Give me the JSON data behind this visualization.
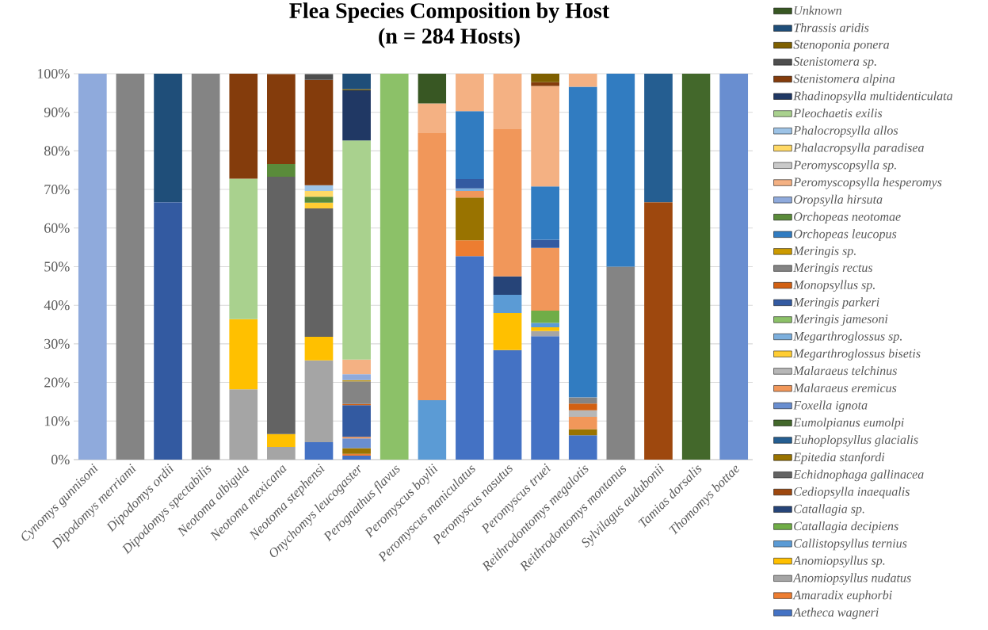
{
  "chart_data": {
    "type": "bar",
    "stacked": true,
    "title": "Flea Species Composition by Host",
    "subtitle": "(n = 284 Hosts)",
    "categories": [
      "Cynomys gunnisoni",
      "Dipodomys merriami",
      "Dipodomys ordii",
      "Dipodomys spectabilis",
      "Neotoma albigula",
      "Neotoma mexicana",
      "Neotoma stephensi",
      "Onychomys leucogaster",
      "Perognathus flavus",
      "Peromyscus boylii",
      "Peromyscus maniculatus",
      "Peromyscus nasutus",
      "Peromyscus truei",
      "Reithrodontomys megalotis",
      "Reithrodontomys montanus",
      "Sylvilagus audubonii",
      "Tamias dorsalis",
      "Thomomys bottae"
    ],
    "ylim": [
      0,
      100
    ],
    "yticks": [
      {
        "value": 0,
        "label": "0%"
      },
      {
        "value": 10,
        "label": "10%"
      },
      {
        "value": 20,
        "label": "20%"
      },
      {
        "value": 30,
        "label": "30%"
      },
      {
        "value": 40,
        "label": "40%"
      },
      {
        "value": 50,
        "label": "50%"
      },
      {
        "value": 60,
        "label": "60%"
      },
      {
        "value": 70,
        "label": "70%"
      },
      {
        "value": 80,
        "label": "80%"
      },
      {
        "value": 90,
        "label": "90%"
      },
      {
        "value": 100,
        "label": "100%"
      }
    ],
    "grid": "y",
    "legend": "right",
    "series": [
      {
        "name": "Aetheca wagneri",
        "color": "#4472c4",
        "values": [
          null,
          null,
          null,
          null,
          null,
          null,
          4.5,
          1.0,
          null,
          null,
          52.7,
          28.4,
          32.0,
          6.3,
          null,
          null,
          null,
          null
        ]
      },
      {
        "name": "Amaradix euphorbi",
        "color": "#ed7d31",
        "values": [
          null,
          null,
          null,
          null,
          null,
          null,
          null,
          0.5,
          null,
          null,
          4.1,
          null,
          null,
          null,
          null,
          null,
          null,
          null
        ]
      },
      {
        "name": "Anomiopsyllus nudatus",
        "color": "#a5a5a5",
        "values": [
          null,
          null,
          null,
          null,
          18.2,
          3.3,
          21.2,
          null,
          null,
          null,
          null,
          null,
          1.3,
          null,
          null,
          null,
          null,
          null
        ]
      },
      {
        "name": "Anomiopsyllus sp.",
        "color": "#ffc000",
        "values": [
          null,
          null,
          null,
          null,
          18.2,
          3.3,
          6.1,
          null,
          null,
          null,
          null,
          9.6,
          1.0,
          null,
          null,
          null,
          null,
          null
        ]
      },
      {
        "name": "Callistopsyllus ternius",
        "color": "#5b9bd5",
        "values": [
          null,
          null,
          null,
          null,
          null,
          null,
          null,
          null,
          null,
          15.4,
          null,
          4.7,
          1.1,
          null,
          null,
          null,
          null,
          null
        ]
      },
      {
        "name": "Catallagia decipiens",
        "color": "#70ad47",
        "values": [
          null,
          null,
          null,
          null,
          null,
          null,
          null,
          null,
          null,
          null,
          null,
          null,
          3.2,
          null,
          null,
          null,
          null,
          null
        ]
      },
      {
        "name": "Catallagia sp.",
        "color": "#264478",
        "values": [
          null,
          null,
          null,
          null,
          null,
          null,
          null,
          null,
          null,
          null,
          null,
          4.8,
          null,
          null,
          null,
          null,
          null,
          null
        ]
      },
      {
        "name": "Cediopsylla inaequalis",
        "color": "#9e480e",
        "values": [
          null,
          null,
          null,
          null,
          null,
          null,
          null,
          null,
          null,
          null,
          null,
          null,
          null,
          null,
          null,
          66.7,
          null,
          null
        ]
      },
      {
        "name": "Echidnophaga gallinacea",
        "color": "#636363",
        "values": [
          null,
          null,
          null,
          null,
          null,
          66.7,
          33.3,
          null,
          null,
          null,
          null,
          null,
          null,
          null,
          null,
          null,
          null,
          null
        ]
      },
      {
        "name": "Epitedia stanfordi",
        "color": "#997300",
        "values": [
          null,
          null,
          null,
          null,
          null,
          null,
          null,
          1.5,
          null,
          null,
          11.1,
          null,
          null,
          1.6,
          null,
          null,
          null,
          null
        ]
      },
      {
        "name": "Euhoplopsyllus glacialis",
        "color": "#255e91",
        "values": [
          null,
          null,
          null,
          null,
          null,
          null,
          null,
          null,
          null,
          null,
          null,
          null,
          null,
          null,
          null,
          33.3,
          null,
          null
        ]
      },
      {
        "name": "Eumolpianus eumolpi",
        "color": "#43682b",
        "values": [
          null,
          null,
          null,
          null,
          null,
          null,
          null,
          null,
          null,
          null,
          null,
          null,
          null,
          null,
          null,
          null,
          100,
          null
        ]
      },
      {
        "name": "Foxella ignota",
        "color": "#698ed0",
        "values": [
          null,
          null,
          null,
          null,
          null,
          null,
          null,
          2.5,
          null,
          null,
          null,
          null,
          null,
          null,
          null,
          null,
          null,
          100
        ]
      },
      {
        "name": "Malaraeus eremicus",
        "color": "#f1975a",
        "values": [
          null,
          null,
          null,
          null,
          null,
          null,
          null,
          0.4,
          null,
          69.2,
          1.7,
          38.1,
          16.3,
          3.2,
          null,
          null,
          null,
          null
        ]
      },
      {
        "name": "Malaraeus telchinus",
        "color": "#b7b7b7",
        "values": [
          null,
          null,
          null,
          null,
          null,
          null,
          null,
          null,
          null,
          null,
          null,
          null,
          null,
          1.7,
          null,
          null,
          null,
          null
        ]
      },
      {
        "name": "Megarthroglossus bisetis",
        "color": "#ffcd33",
        "values": [
          null,
          null,
          null,
          null,
          null,
          null,
          1.5,
          null,
          null,
          null,
          null,
          null,
          null,
          null,
          null,
          null,
          null,
          null
        ]
      },
      {
        "name": "Megarthroglossus sp.",
        "color": "#7cafdd",
        "values": [
          null,
          null,
          null,
          null,
          null,
          null,
          null,
          null,
          null,
          null,
          0.7,
          null,
          null,
          null,
          null,
          null,
          null,
          null
        ]
      },
      {
        "name": "Meringis jamesoni",
        "color": "#8cc168",
        "values": [
          null,
          null,
          null,
          null,
          null,
          null,
          null,
          null,
          100,
          null,
          null,
          null,
          null,
          null,
          null,
          null,
          null,
          null
        ]
      },
      {
        "name": "Meringis parkeri",
        "color": "#335aa1",
        "values": [
          null,
          null,
          66.7,
          null,
          null,
          null,
          null,
          8.2,
          null,
          null,
          2.4,
          null,
          2.1,
          null,
          null,
          null,
          null,
          null
        ]
      },
      {
        "name": "Monopsyllus sp.",
        "color": "#d26012",
        "values": [
          null,
          null,
          null,
          null,
          null,
          null,
          null,
          0.3,
          null,
          null,
          null,
          null,
          null,
          1.7,
          null,
          null,
          null,
          null
        ]
      },
      {
        "name": "Meringis rectus",
        "color": "#848484",
        "values": [
          null,
          100,
          null,
          100,
          null,
          null,
          null,
          5.9,
          null,
          null,
          null,
          null,
          null,
          1.6,
          50,
          null,
          null,
          null
        ]
      },
      {
        "name": "Meringis sp.",
        "color": "#cc9a00",
        "values": [
          null,
          null,
          null,
          null,
          null,
          null,
          null,
          0.3,
          null,
          null,
          null,
          null,
          null,
          null,
          null,
          null,
          null,
          null
        ]
      },
      {
        "name": "Orchopeas leucopus",
        "color": "#317cc1",
        "values": [
          null,
          null,
          null,
          null,
          null,
          null,
          null,
          null,
          null,
          null,
          17.6,
          null,
          13.8,
          80.5,
          50,
          null,
          null,
          null
        ]
      },
      {
        "name": "Orchopeas neotomae",
        "color": "#5a8b3a",
        "values": [
          null,
          null,
          null,
          null,
          null,
          3.3,
          1.5,
          null,
          null,
          null,
          null,
          null,
          null,
          null,
          null,
          null,
          null,
          null
        ]
      },
      {
        "name": "Oropsylla hirsuta",
        "color": "#8faadc",
        "values": [
          100,
          null,
          null,
          null,
          null,
          null,
          null,
          1.5,
          null,
          null,
          null,
          null,
          null,
          null,
          null,
          null,
          null,
          null
        ]
      },
      {
        "name": "Peromyscopsylla hesperomys",
        "color": "#f4b183",
        "values": [
          null,
          null,
          null,
          null,
          null,
          null,
          null,
          3.8,
          null,
          7.7,
          9.7,
          14.4,
          26.0,
          3.4,
          null,
          null,
          null,
          null
        ]
      },
      {
        "name": "Peromyscopsylla sp.",
        "color": "#c9c9c9",
        "values": [
          null,
          null,
          null,
          null,
          null,
          null,
          null,
          null,
          null,
          null,
          null,
          null,
          null,
          null,
          null,
          null,
          null,
          null
        ]
      },
      {
        "name": "Phalacropsylla paradisea",
        "color": "#ffd966",
        "values": [
          null,
          null,
          null,
          null,
          null,
          null,
          1.5,
          null,
          null,
          null,
          null,
          null,
          null,
          null,
          null,
          null,
          null,
          null
        ]
      },
      {
        "name": "Phalocropsylla allos",
        "color": "#9dc3e6",
        "values": [
          null,
          null,
          null,
          null,
          null,
          null,
          1.5,
          null,
          null,
          null,
          null,
          null,
          null,
          null,
          null,
          null,
          null,
          null
        ]
      },
      {
        "name": "Pleochaetis exilis",
        "color": "#a9d18e",
        "values": [
          null,
          null,
          null,
          null,
          36.4,
          null,
          null,
          56.8,
          null,
          null,
          null,
          null,
          null,
          null,
          null,
          null,
          null,
          null
        ]
      },
      {
        "name": "Rhadinopsylla multidenticulata",
        "color": "#203864",
        "values": [
          null,
          null,
          null,
          null,
          null,
          null,
          null,
          13.0,
          null,
          null,
          null,
          null,
          null,
          null,
          null,
          null,
          null,
          null
        ]
      },
      {
        "name": "Stenistomera alpina",
        "color": "#843c0c",
        "values": [
          null,
          null,
          null,
          null,
          27.3,
          23.3,
          27.3,
          null,
          null,
          null,
          null,
          null,
          1.0,
          null,
          null,
          null,
          null,
          null
        ]
      },
      {
        "name": "Stenistomera sp.",
        "color": "#4e4e4e",
        "values": [
          null,
          null,
          null,
          null,
          null,
          null,
          1.5,
          null,
          null,
          null,
          null,
          null,
          null,
          null,
          null,
          null,
          null,
          null
        ]
      },
      {
        "name": "Stenoponia ponera",
        "color": "#7f6000",
        "values": [
          null,
          null,
          null,
          null,
          null,
          null,
          null,
          0.3,
          null,
          null,
          null,
          null,
          2.2,
          null,
          null,
          null,
          null,
          null
        ]
      },
      {
        "name": "Thrassis aridis",
        "color": "#1f4e79",
        "values": [
          null,
          null,
          33.3,
          null,
          null,
          null,
          null,
          4.0,
          null,
          null,
          null,
          null,
          null,
          null,
          null,
          null,
          null,
          null
        ]
      },
      {
        "name": "Unknown",
        "color": "#385723",
        "values": [
          null,
          null,
          null,
          null,
          null,
          null,
          null,
          null,
          null,
          7.7,
          null,
          null,
          null,
          null,
          null,
          null,
          null,
          null
        ]
      }
    ]
  }
}
